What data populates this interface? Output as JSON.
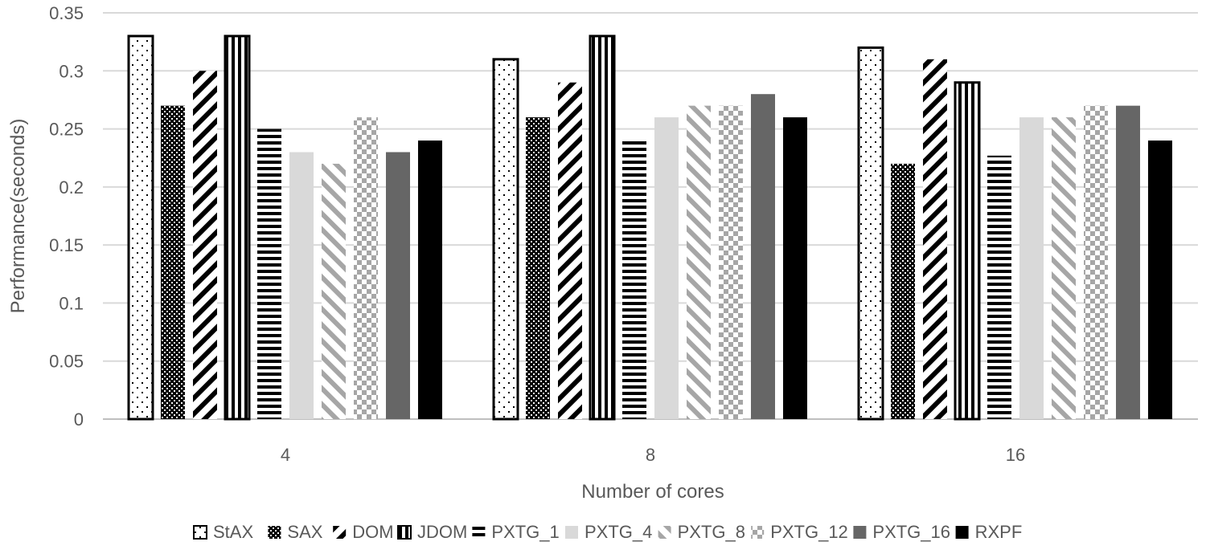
{
  "chart_data": {
    "type": "bar",
    "title": "",
    "xlabel": "Number of cores",
    "ylabel": "Performance(seconds)",
    "ylim": [
      0,
      0.35
    ],
    "yticks": [
      "0",
      "0.05",
      "0.1",
      "0.15",
      "0.2",
      "0.25",
      "0.3",
      "0.35"
    ],
    "ytick_values": [
      0,
      0.05,
      0.1,
      0.15,
      0.2,
      0.25,
      0.3,
      0.35
    ],
    "grid": true,
    "legend_position": "bottom",
    "categories": [
      "4",
      "8",
      "16"
    ],
    "series": [
      {
        "name": "StAX",
        "pattern": "dots-outline",
        "values": [
          0.33,
          0.31,
          0.32
        ]
      },
      {
        "name": "SAX",
        "pattern": "black-checker",
        "values": [
          0.27,
          0.26,
          0.22
        ]
      },
      {
        "name": "DOM",
        "pattern": "diagonal-down",
        "values": [
          0.3,
          0.29,
          0.31
        ]
      },
      {
        "name": "JDOM",
        "pattern": "vertical-stripes",
        "values": [
          0.33,
          0.33,
          0.29
        ]
      },
      {
        "name": "PXTG_1",
        "pattern": "horizontal-stripes",
        "values": [
          0.25,
          0.24,
          0.227
        ]
      },
      {
        "name": "PXTG_4",
        "pattern": "solid-light",
        "values": [
          0.23,
          0.26,
          0.26
        ]
      },
      {
        "name": "PXTG_8",
        "pattern": "diagonal-up-gray",
        "values": [
          0.22,
          0.27,
          0.26
        ]
      },
      {
        "name": "PXTG_12",
        "pattern": "gray-checker",
        "values": [
          0.26,
          0.27,
          0.27
        ]
      },
      {
        "name": "PXTG_16",
        "pattern": "solid-dark",
        "values": [
          0.23,
          0.28,
          0.27
        ]
      },
      {
        "name": "RXPF",
        "pattern": "solid-black",
        "values": [
          0.24,
          0.26,
          0.24
        ]
      }
    ]
  }
}
